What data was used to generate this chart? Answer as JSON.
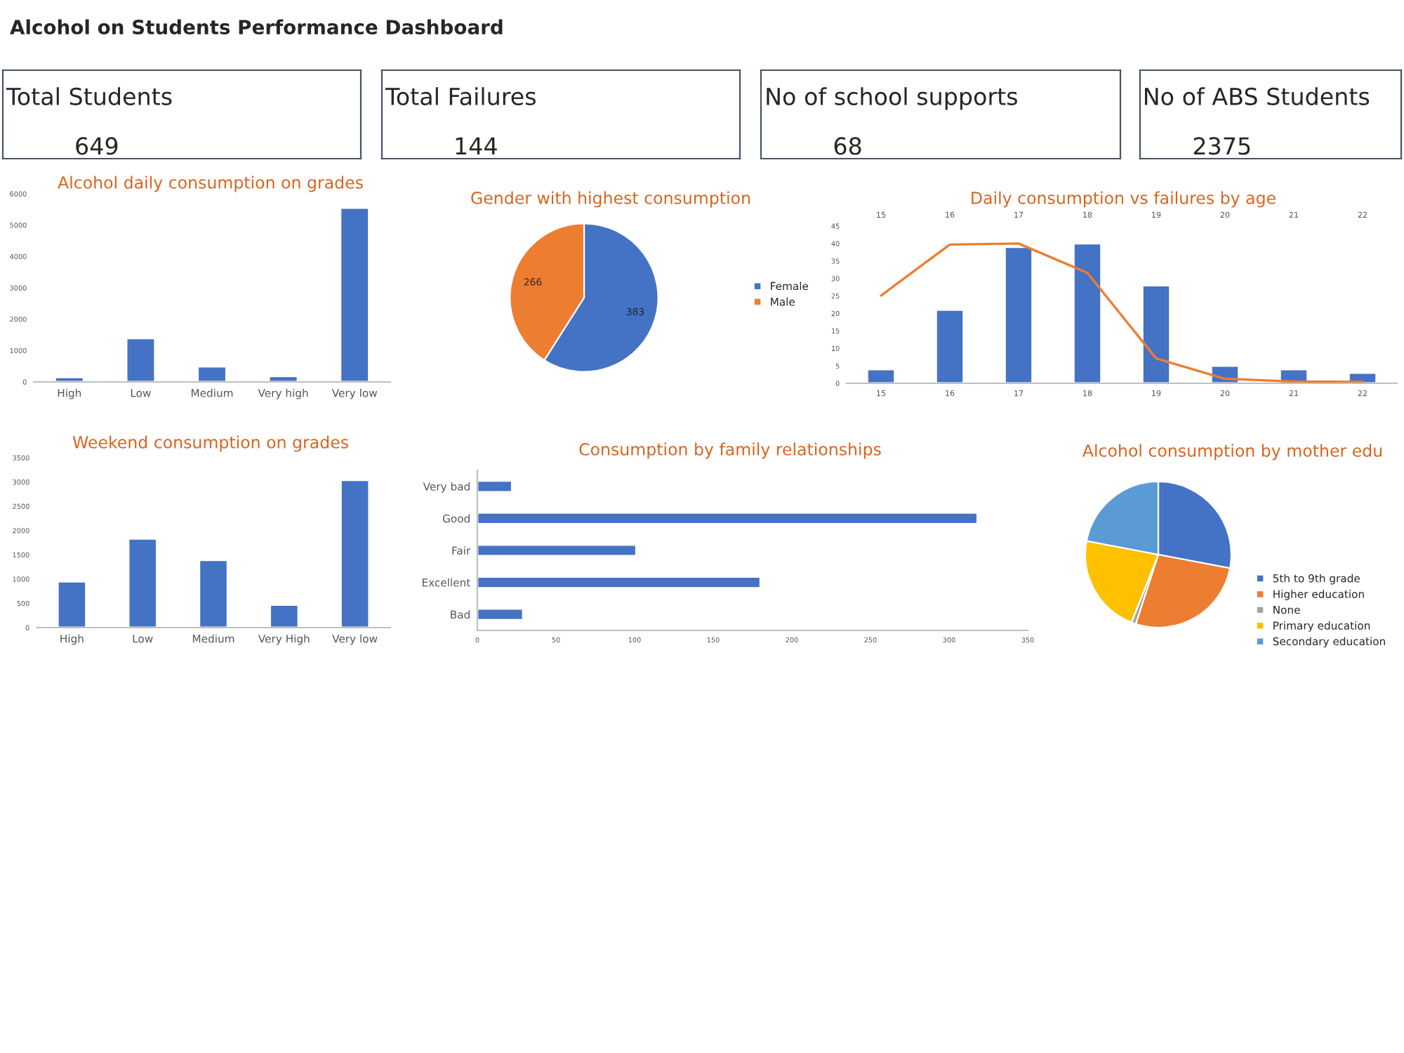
{
  "chart_data": [
    {
      "type": "other",
      "title": "Alcohol on Students Performance Dashboard"
    },
    {
      "type": "other",
      "title": "Total Students",
      "annotations": [
        "649"
      ]
    },
    {
      "type": "other",
      "title": "Total Failures",
      "annotations": [
        "144"
      ]
    },
    {
      "type": "other",
      "title": "No of school supports",
      "annotations": [
        "68"
      ]
    },
    {
      "type": "other",
      "title": "No of ABS Students",
      "annotations": [
        "2375"
      ]
    },
    {
      "type": "bar",
      "title": "Alcohol daily consumption on grades",
      "categories": [
        "High",
        "Low",
        "Medium",
        "Very high",
        "Very low"
      ],
      "values": [
        150,
        1390,
        490,
        180,
        5550
      ],
      "color": "#4472c4",
      "ylim": [
        0,
        6000
      ],
      "yticks": [
        0,
        1000,
        2000,
        3000,
        4000,
        5000,
        6000
      ],
      "grid": false
    },
    {
      "type": "pie",
      "title": "Gender with highest consumption",
      "categories": [
        "Female",
        "Male"
      ],
      "values": [
        383,
        266
      ],
      "colors": [
        "#4472c4",
        "#ed7d31"
      ],
      "data_labels": true,
      "legend": "right"
    },
    {
      "type": "bar",
      "title": "Daily consumption vs failures by age",
      "x": [
        15,
        16,
        17,
        18,
        19,
        20,
        21,
        22
      ],
      "xlim": [
        14.5,
        22.5
      ],
      "xticks": [
        15,
        16,
        17,
        18,
        19,
        20,
        21,
        22
      ],
      "x2lim": [
        14.5,
        22.5
      ],
      "x2ticks": [
        15,
        16,
        17,
        18,
        19,
        20,
        21,
        22
      ],
      "series": [
        {
          "type": "bar",
          "color": "#4472c4",
          "values": [
            4,
            21,
            39,
            40,
            28,
            5,
            4,
            3
          ]
        },
        {
          "type": "line",
          "color": "#ed7d31",
          "values": [
            25.1,
            39.7,
            40,
            31.6,
            7.1,
            1.3,
            0.5,
            0.4
          ]
        }
      ],
      "ylim": [
        0,
        45
      ],
      "yticks": [
        0,
        5,
        10,
        15,
        20,
        25,
        30,
        35,
        40,
        45
      ],
      "grid": false,
      "marker": "none"
    },
    {
      "type": "bar",
      "title": "Weekend consumption on grades",
      "categories": [
        "High",
        "Low",
        "Medium",
        "Very High",
        "Very low"
      ],
      "values": [
        950,
        1830,
        1390,
        470,
        3040
      ],
      "color": "#4472c4",
      "ylim": [
        0,
        3500
      ],
      "yticks": [
        0,
        500,
        1000,
        1500,
        2000,
        2500,
        3000,
        3500
      ],
      "grid": false
    },
    {
      "type": "bar",
      "orientation": "horizontal",
      "title": "Consumption by family relationships",
      "categories": [
        "Very bad",
        "Good",
        "Fair",
        "Excellent",
        "Bad"
      ],
      "values": [
        22,
        318,
        101,
        180,
        29
      ],
      "color": "#4472c4",
      "xlim": [
        0,
        350
      ],
      "xticks": [
        0,
        50,
        100,
        150,
        200,
        250,
        300,
        350
      ],
      "grid": false
    },
    {
      "type": "pie",
      "title": "Alcohol consumption by mother edu",
      "categories": [
        "5th to 9th grade",
        "Higher education",
        "None",
        "Primary education",
        "Secondary education"
      ],
      "values": [
        28,
        27,
        1,
        22,
        22
      ],
      "colors": [
        "#4472c4",
        "#ed7d31",
        "#a5a5a5",
        "#ffc000",
        "#5b9bd5"
      ],
      "legend": "right"
    }
  ]
}
